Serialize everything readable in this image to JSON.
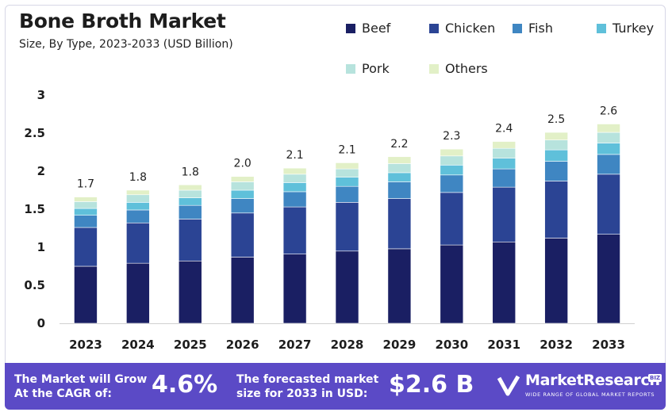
{
  "header": {
    "title": "Bone Broth Market",
    "subtitle": "Size, By Type, 2023-2033 (USD Billion)"
  },
  "chart_data": {
    "type": "bar",
    "stacked": true,
    "categories": [
      "2023",
      "2024",
      "2025",
      "2026",
      "2027",
      "2028",
      "2029",
      "2030",
      "2031",
      "2032",
      "2033"
    ],
    "totals": [
      "1.7",
      "1.8",
      "1.8",
      "2.0",
      "2.1",
      "2.1",
      "2.2",
      "2.3",
      "2.4",
      "2.5",
      "2.6"
    ],
    "series": [
      {
        "name": "Beef",
        "color": "#1a1f63",
        "values": [
          0.75,
          0.79,
          0.82,
          0.87,
          0.91,
          0.95,
          0.98,
          1.03,
          1.07,
          1.12,
          1.17
        ]
      },
      {
        "name": "Chicken",
        "color": "#2b4494",
        "values": [
          0.51,
          0.53,
          0.55,
          0.58,
          0.62,
          0.64,
          0.66,
          0.69,
          0.72,
          0.75,
          0.79
        ]
      },
      {
        "name": "Fish",
        "color": "#3f86c2",
        "values": [
          0.16,
          0.17,
          0.18,
          0.19,
          0.2,
          0.21,
          0.22,
          0.23,
          0.24,
          0.26,
          0.26
        ]
      },
      {
        "name": "Turkey",
        "color": "#5fc0da",
        "values": [
          0.09,
          0.1,
          0.1,
          0.11,
          0.12,
          0.12,
          0.12,
          0.13,
          0.14,
          0.15,
          0.15
        ]
      },
      {
        "name": "Pork",
        "color": "#b7e3dd",
        "values": [
          0.09,
          0.1,
          0.1,
          0.11,
          0.11,
          0.11,
          0.12,
          0.12,
          0.13,
          0.13,
          0.14
        ]
      },
      {
        "name": "Others",
        "color": "#e2f0c7",
        "values": [
          0.06,
          0.06,
          0.07,
          0.07,
          0.08,
          0.08,
          0.09,
          0.09,
          0.09,
          0.1,
          0.11
        ]
      }
    ],
    "ylim": [
      0,
      3
    ],
    "yticks": [
      "0",
      "0.5",
      "1",
      "1.5",
      "2",
      "2.5",
      "3"
    ],
    "ytick_values": [
      0,
      0.5,
      1,
      1.5,
      2,
      2.5,
      3
    ],
    "grid": false,
    "legend_position": "top-right"
  },
  "footer": {
    "cagr_label_line1": "The Market will Grow",
    "cagr_label_line2": "At the CAGR of:",
    "cagr_value": "4.6%",
    "forecast_label_line1": "The forecasted market",
    "forecast_label_line2": "size for 2033 in USD:",
    "forecast_value": "$2.6 B",
    "brand_name": "MarketResearch",
    "brand_badge": "BIZ",
    "brand_tagline": "WIDE RANGE OF GLOBAL MARKET REPORTS"
  }
}
